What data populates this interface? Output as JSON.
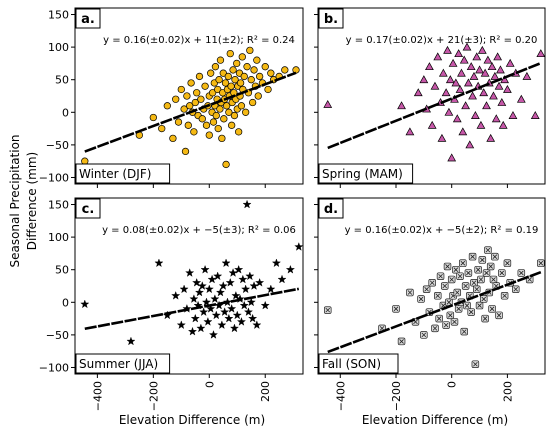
{
  "figure": {
    "ylabel_line1": "Seasonal Precipitation",
    "ylabel_line2": "Difference (mm)",
    "xlabel": "Elevation Difference (m)"
  },
  "chart_data": [
    {
      "type": "scatter",
      "panel": "a.",
      "season": "Winter (DJF)",
      "equation": "y = 0.16(±0.02)x + 11(±2); R² = 0.24",
      "marker": "circle",
      "marker_color": "#f5b914",
      "marker_edge": "#000000",
      "fit": {
        "slope": 0.16,
        "intercept": 11,
        "r2": 0.24
      },
      "x_ticks": [
        -400,
        -200,
        0,
        200
      ],
      "y_ticks": [
        -100,
        -50,
        0,
        50,
        100,
        150
      ],
      "xlim": [
        -480,
        335
      ],
      "ylim": [
        -110,
        160
      ],
      "points": [
        [
          -445,
          -75
        ],
        [
          -250,
          -35
        ],
        [
          -200,
          -8
        ],
        [
          -170,
          -25
        ],
        [
          -150,
          10
        ],
        [
          -130,
          -40
        ],
        [
          -120,
          20
        ],
        [
          -110,
          -15
        ],
        [
          -100,
          35
        ],
        [
          -90,
          5
        ],
        [
          -85,
          -60
        ],
        [
          -80,
          25
        ],
        [
          -75,
          -20
        ],
        [
          -70,
          10
        ],
        [
          -65,
          45
        ],
        [
          -60,
          0
        ],
        [
          -55,
          -30
        ],
        [
          -50,
          15
        ],
        [
          -45,
          30
        ],
        [
          -40,
          -5
        ],
        [
          -35,
          55
        ],
        [
          -30,
          20
        ],
        [
          -25,
          -10
        ],
        [
          -20,
          5
        ],
        [
          -15,
          40
        ],
        [
          -10,
          -20
        ],
        [
          -5,
          10
        ],
        [
          0,
          25
        ],
        [
          0,
          -35
        ],
        [
          5,
          60
        ],
        [
          10,
          0
        ],
        [
          12,
          30
        ],
        [
          15,
          -15
        ],
        [
          18,
          45
        ],
        [
          20,
          10
        ],
        [
          22,
          70
        ],
        [
          25,
          -5
        ],
        [
          28,
          20
        ],
        [
          30,
          35
        ],
        [
          32,
          -25
        ],
        [
          35,
          50
        ],
        [
          38,
          5
        ],
        [
          40,
          80
        ],
        [
          42,
          15
        ],
        [
          45,
          -40
        ],
        [
          48,
          30
        ],
        [
          50,
          60
        ],
        [
          52,
          -10
        ],
        [
          55,
          20
        ],
        [
          58,
          45
        ],
        [
          60,
          -80
        ],
        [
          62,
          10
        ],
        [
          65,
          35
        ],
        [
          68,
          55
        ],
        [
          70,
          0
        ],
        [
          72,
          25
        ],
        [
          75,
          90
        ],
        [
          78,
          40
        ],
        [
          80,
          -20
        ],
        [
          82,
          15
        ],
        [
          85,
          65
        ],
        [
          88,
          30
        ],
        [
          90,
          -5
        ],
        [
          92,
          50
        ],
        [
          95,
          20
        ],
        [
          98,
          75
        ],
        [
          100,
          5
        ],
        [
          102,
          40
        ],
        [
          105,
          -30
        ],
        [
          108,
          60
        ],
        [
          110,
          25
        ],
        [
          112,
          45
        ],
        [
          115,
          10
        ],
        [
          118,
          85
        ],
        [
          120,
          35
        ],
        [
          125,
          55
        ],
        [
          130,
          0
        ],
        [
          135,
          70
        ],
        [
          140,
          30
        ],
        [
          145,
          95
        ],
        [
          150,
          50
        ],
        [
          155,
          15
        ],
        [
          160,
          65
        ],
        [
          165,
          40
        ],
        [
          170,
          80
        ],
        [
          175,
          25
        ],
        [
          180,
          55
        ],
        [
          190,
          45
        ],
        [
          200,
          70
        ],
        [
          210,
          35
        ],
        [
          220,
          60
        ],
        [
          230,
          50
        ],
        [
          250,
          55
        ],
        [
          270,
          65
        ],
        [
          310,
          65
        ]
      ]
    },
    {
      "type": "scatter",
      "panel": "b.",
      "season": "Spring (MAM)",
      "equation": "y = 0.17(±0.02)x + 21(±3); R² = 0.20",
      "marker": "triangle",
      "marker_color": "#c657a8",
      "marker_edge": "#000000",
      "fit": {
        "slope": 0.17,
        "intercept": 21,
        "r2": 0.2
      },
      "x_ticks": [
        -400,
        -200,
        0,
        200
      ],
      "y_ticks": [
        -100,
        -50,
        0,
        50,
        100,
        150
      ],
      "xlim": [
        -480,
        335
      ],
      "ylim": [
        -110,
        160
      ],
      "points": [
        [
          -445,
          12
        ],
        [
          -180,
          10
        ],
        [
          -150,
          -30
        ],
        [
          -120,
          30
        ],
        [
          -100,
          50
        ],
        [
          -90,
          5
        ],
        [
          -80,
          70
        ],
        [
          -70,
          -20
        ],
        [
          -60,
          40
        ],
        [
          -50,
          85
        ],
        [
          -40,
          15
        ],
        [
          -35,
          -40
        ],
        [
          -30,
          60
        ],
        [
          -20,
          30
        ],
        [
          -15,
          95
        ],
        [
          -10,
          0
        ],
        [
          -5,
          50
        ],
        [
          0,
          -70
        ],
        [
          5,
          75
        ],
        [
          10,
          20
        ],
        [
          15,
          45
        ],
        [
          20,
          -10
        ],
        [
          25,
          90
        ],
        [
          30,
          35
        ],
        [
          35,
          60
        ],
        [
          40,
          -30
        ],
        [
          45,
          80
        ],
        [
          50,
          10
        ],
        [
          55,
          100
        ],
        [
          60,
          45
        ],
        [
          65,
          -50
        ],
        [
          70,
          70
        ],
        [
          75,
          25
        ],
        [
          80,
          55
        ],
        [
          85,
          -5
        ],
        [
          90,
          85
        ],
        [
          95,
          40
        ],
        [
          100,
          65
        ],
        [
          105,
          -20
        ],
        [
          110,
          95
        ],
        [
          115,
          30
        ],
        [
          120,
          60
        ],
        [
          125,
          10
        ],
        [
          130,
          80
        ],
        [
          135,
          45
        ],
        [
          140,
          -40
        ],
        [
          145,
          70
        ],
        [
          150,
          25
        ],
        [
          155,
          55
        ],
        [
          160,
          -10
        ],
        [
          165,
          85
        ],
        [
          170,
          40
        ],
        [
          175,
          65
        ],
        [
          180,
          15
        ],
        [
          185,
          -20
        ],
        [
          190,
          50
        ],
        [
          200,
          35
        ],
        [
          210,
          75
        ],
        [
          220,
          -5
        ],
        [
          230,
          60
        ],
        [
          250,
          20
        ],
        [
          270,
          55
        ],
        [
          300,
          -5
        ],
        [
          320,
          90
        ]
      ]
    },
    {
      "type": "scatter",
      "panel": "c.",
      "season": "Summer (JJA)",
      "equation": "y = 0.08(±0.02)x + −5(±3); R² = 0.06",
      "marker": "star",
      "marker_color": "#000000",
      "marker_edge": "#000000",
      "fit": {
        "slope": 0.08,
        "intercept": -5,
        "r2": 0.06
      },
      "x_ticks": [
        -400,
        -200,
        0,
        200
      ],
      "y_ticks": [
        -100,
        -50,
        0,
        50,
        100,
        150
      ],
      "xlim": [
        -480,
        335
      ],
      "ylim": [
        -110,
        160
      ],
      "points": [
        [
          -445,
          -3
        ],
        [
          -280,
          -60
        ],
        [
          -180,
          60
        ],
        [
          -150,
          -20
        ],
        [
          -120,
          10
        ],
        [
          -100,
          -35
        ],
        [
          -90,
          20
        ],
        [
          -80,
          -10
        ],
        [
          -70,
          45
        ],
        [
          -60,
          -45
        ],
        [
          -55,
          5
        ],
        [
          -50,
          -25
        ],
        [
          -45,
          30
        ],
        [
          -40,
          -5
        ],
        [
          -35,
          15
        ],
        [
          -30,
          -40
        ],
        [
          -25,
          25
        ],
        [
          -20,
          -15
        ],
        [
          -15,
          50
        ],
        [
          -10,
          0
        ],
        [
          -5,
          -30
        ],
        [
          0,
          20
        ],
        [
          5,
          -10
        ],
        [
          10,
          35
        ],
        [
          15,
          -50
        ],
        [
          20,
          5
        ],
        [
          25,
          -20
        ],
        [
          30,
          40
        ],
        [
          35,
          -5
        ],
        [
          40,
          15
        ],
        [
          45,
          -35
        ],
        [
          50,
          25
        ],
        [
          55,
          -15
        ],
        [
          60,
          60
        ],
        [
          65,
          0
        ],
        [
          70,
          -25
        ],
        [
          75,
          30
        ],
        [
          80,
          -10
        ],
        [
          85,
          45
        ],
        [
          90,
          -40
        ],
        [
          95,
          10
        ],
        [
          100,
          -20
        ],
        [
          105,
          50
        ],
        [
          110,
          5
        ],
        [
          115,
          -30
        ],
        [
          120,
          35
        ],
        [
          125,
          -5
        ],
        [
          130,
          20
        ],
        [
          135,
          150
        ],
        [
          140,
          -15
        ],
        [
          145,
          40
        ],
        [
          150,
          0
        ],
        [
          155,
          -25
        ],
        [
          160,
          25
        ],
        [
          170,
          -35
        ],
        [
          180,
          30
        ],
        [
          200,
          -5
        ],
        [
          220,
          20
        ],
        [
          240,
          60
        ],
        [
          260,
          35
        ],
        [
          290,
          50
        ],
        [
          320,
          85
        ]
      ]
    },
    {
      "type": "scatter",
      "panel": "d.",
      "season": "Fall (SON)",
      "equation": "y = 0.16(±0.02)x + −5(±2); R² = 0.19",
      "marker": "x-square",
      "marker_color": "#d9d9d9",
      "marker_edge": "#222222",
      "fit": {
        "slope": 0.16,
        "intercept": -5,
        "r2": 0.19
      },
      "x_ticks": [
        -400,
        -200,
        0,
        200
      ],
      "y_ticks": [
        -100,
        -50,
        0,
        50,
        100,
        150
      ],
      "xlim": [
        -480,
        335
      ],
      "ylim": [
        -110,
        160
      ],
      "points": [
        [
          -445,
          -12
        ],
        [
          -250,
          -40
        ],
        [
          -200,
          -10
        ],
        [
          -180,
          -60
        ],
        [
          -150,
          15
        ],
        [
          -130,
          -30
        ],
        [
          -110,
          5
        ],
        [
          -100,
          -50
        ],
        [
          -90,
          20
        ],
        [
          -80,
          -15
        ],
        [
          -70,
          30
        ],
        [
          -60,
          -40
        ],
        [
          -50,
          10
        ],
        [
          -45,
          -25
        ],
        [
          -40,
          40
        ],
        [
          -30,
          -5
        ],
        [
          -25,
          25
        ],
        [
          -20,
          -35
        ],
        [
          -15,
          55
        ],
        [
          -10,
          0
        ],
        [
          -5,
          -20
        ],
        [
          0,
          35
        ],
        [
          5,
          10
        ],
        [
          10,
          -30
        ],
        [
          15,
          50
        ],
        [
          20,
          15
        ],
        [
          25,
          -10
        ],
        [
          30,
          40
        ],
        [
          35,
          0
        ],
        [
          40,
          60
        ],
        [
          45,
          -45
        ],
        [
          50,
          25
        ],
        [
          55,
          -5
        ],
        [
          60,
          45
        ],
        [
          65,
          10
        ],
        [
          70,
          -15
        ],
        [
          75,
          70
        ],
        [
          80,
          30
        ],
        [
          85,
          -95
        ],
        [
          90,
          20
        ],
        [
          95,
          50
        ],
        [
          100,
          -5
        ],
        [
          105,
          35
        ],
        [
          110,
          65
        ],
        [
          115,
          5
        ],
        [
          120,
          -25
        ],
        [
          125,
          45
        ],
        [
          130,
          80
        ],
        [
          135,
          15
        ],
        [
          140,
          55
        ],
        [
          145,
          -10
        ],
        [
          150,
          35
        ],
        [
          155,
          70
        ],
        [
          160,
          25
        ],
        [
          170,
          -20
        ],
        [
          180,
          45
        ],
        [
          190,
          10
        ],
        [
          200,
          60
        ],
        [
          210,
          30
        ],
        [
          230,
          20
        ],
        [
          250,
          45
        ],
        [
          280,
          35
        ],
        [
          320,
          60
        ]
      ]
    }
  ]
}
